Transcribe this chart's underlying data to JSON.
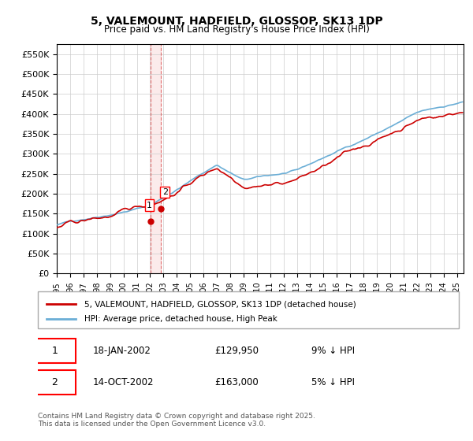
{
  "title": "5, VALEMOUNT, HADFIELD, GLOSSOP, SK13 1DP",
  "subtitle": "Price paid vs. HM Land Registry's House Price Index (HPI)",
  "legend_line1": "5, VALEMOUNT, HADFIELD, GLOSSOP, SK13 1DP (detached house)",
  "legend_line2": "HPI: Average price, detached house, High Peak",
  "annotation1_box": "1",
  "annotation1_date": "18-JAN-2002",
  "annotation1_price": "£129,950",
  "annotation1_hpi": "9% ↓ HPI",
  "annotation2_box": "2",
  "annotation2_date": "14-OCT-2002",
  "annotation2_price": "£163,000",
  "annotation2_hpi": "5% ↓ HPI",
  "footer": "Contains HM Land Registry data © Crown copyright and database right 2025.\nThis data is licensed under the Open Government Licence v3.0.",
  "ylim": [
    0,
    575000
  ],
  "yticks": [
    0,
    50000,
    100000,
    150000,
    200000,
    250000,
    300000,
    350000,
    400000,
    450000,
    500000,
    550000
  ],
  "ytick_labels": [
    "£0",
    "£50K",
    "£100K",
    "£150K",
    "£200K",
    "£250K",
    "£300K",
    "£350K",
    "£400K",
    "£450K",
    "£500K",
    "£550K"
  ],
  "hpi_color": "#6baed6",
  "price_color": "#cc0000",
  "vline_color": "#cc0000",
  "vline_alpha": 0.3,
  "vline_x1": 2002.05,
  "vline_x2": 2002.8,
  "purchase1_x": 2002.05,
  "purchase1_y": 129950,
  "purchase2_x": 2002.8,
  "purchase2_y": 163000,
  "xmin": 1995,
  "xmax": 2025.5,
  "background_color": "#ffffff",
  "grid_color": "#cccccc"
}
